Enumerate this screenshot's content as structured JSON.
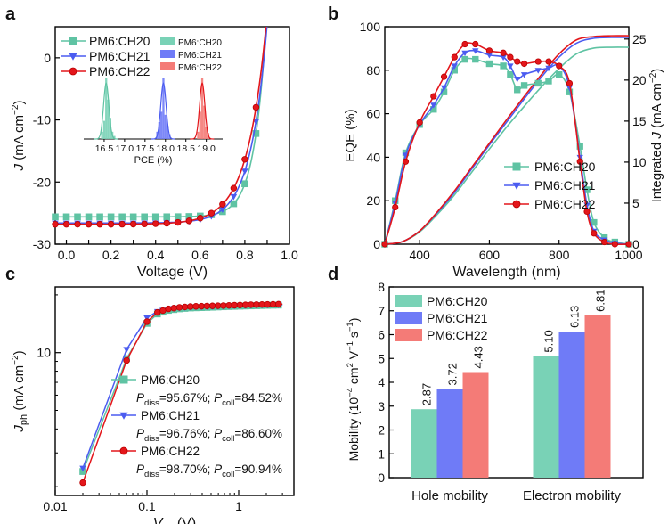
{
  "colors": {
    "ch20": "#5fc3a3",
    "ch21": "#4b5cf0",
    "ch22": "#e3161b",
    "bar20": "#79d2b6",
    "bar21": "#6f7bf7",
    "bar22": "#f47b77"
  },
  "chart_data": [
    {
      "panel": "a",
      "type": "line",
      "xlabel": "Voltage (V)",
      "ylabel_main": "J",
      "ylabel_unit": " (mA cm",
      "ylabel_exp": "−2",
      "ylabel_close": ")",
      "xlim": [
        -0.05,
        1.0
      ],
      "ylim": [
        -30,
        5
      ],
      "xticks": [
        "0.0",
        "0.1",
        "0.2",
        "0.3",
        "0.4",
        "0.5",
        "0.6",
        "0.7",
        "0.8",
        "0.9",
        "1.0"
      ],
      "yticks": [
        "0",
        "-10",
        "-20",
        "-30"
      ],
      "series": [
        {
          "name": "PM6:CH20",
          "jsc": 25.6,
          "voc": 0.885,
          "slope": 3.3
        },
        {
          "name": "PM6:CH21",
          "jsc": 26.6,
          "voc": 0.886,
          "slope": 2.4
        },
        {
          "name": "PM6:CH22",
          "jsc": 26.8,
          "voc": 0.88,
          "slope": 2.1
        }
      ],
      "inset": {
        "xlabel": "PCE (%)",
        "xlim": [
          16.0,
          19.4
        ],
        "xticks": [
          "16.5",
          "17.0",
          "17.5",
          "18.0",
          "18.5",
          "19.0"
        ],
        "legend": [
          "PM6:CH20",
          "PM6:CH21",
          "PM6:CH22"
        ],
        "histograms": [
          {
            "name": "PM6:CH20",
            "x": [
              16.45,
              16.5,
              16.55,
              16.6,
              16.65,
              16.7,
              16.75
            ],
            "count": [
              0.12,
              0.3,
              1.0,
              0.65,
              0.35,
              0.12,
              0.05
            ]
          },
          {
            "name": "PM6:CH21",
            "x": [
              17.8,
              17.85,
              17.9,
              17.95,
              18.0,
              18.05,
              18.1
            ],
            "count": [
              0.12,
              0.28,
              0.45,
              1.0,
              0.4,
              0.22,
              0.08
            ]
          },
          {
            "name": "PM6:CH22",
            "x": [
              18.8,
              18.85,
              18.9,
              18.95,
              19.0,
              19.05
            ],
            "count": [
              0.12,
              0.45,
              1.0,
              0.55,
              0.2,
              0.1
            ]
          }
        ]
      }
    },
    {
      "panel": "b",
      "type": "line",
      "xlabel": "Wavelength (nm)",
      "ylabel_left": "EQE (%)",
      "ylabel_right_pre": "Integrated ",
      "ylabel_right_j": "J",
      "ylabel_right_unit": " (mA cm",
      "ylabel_right_exp": "−2",
      "ylabel_right_close": ")",
      "xlim": [
        300,
        1000
      ],
      "ylim": [
        0,
        100
      ],
      "y2lim": [
        0,
        26.5
      ],
      "xticks": [
        "400",
        "600",
        "800",
        "1000"
      ],
      "yticks": [
        "0",
        "20",
        "40",
        "60",
        "80",
        "100"
      ],
      "y2ticks": [
        "0",
        "5",
        "10",
        "15",
        "20",
        "25"
      ],
      "series": [
        {
          "name": "PM6:CH20",
          "x": [
            300,
            330,
            360,
            400,
            440,
            470,
            500,
            530,
            560,
            600,
            640,
            660,
            680,
            700,
            740,
            770,
            800,
            830,
            860,
            880,
            900,
            930,
            960,
            1000
          ],
          "y": [
            0,
            20,
            42,
            55,
            62,
            70,
            80,
            85,
            85,
            83,
            82,
            78,
            71,
            73,
            74,
            75,
            78,
            70,
            45,
            25,
            10,
            3,
            1,
            0
          ]
        },
        {
          "name": "PM6:CH21",
          "x": [
            300,
            330,
            360,
            400,
            440,
            470,
            500,
            530,
            560,
            600,
            640,
            660,
            680,
            700,
            740,
            770,
            800,
            830,
            860,
            880,
            900,
            930,
            960,
            1000
          ],
          "y": [
            0,
            19,
            41,
            55,
            64,
            72,
            82,
            88,
            89,
            87,
            86,
            82,
            76,
            78,
            80,
            81,
            82,
            72,
            40,
            18,
            6,
            2,
            0.5,
            0
          ]
        },
        {
          "name": "PM6:CH22",
          "x": [
            300,
            330,
            360,
            400,
            440,
            470,
            500,
            530,
            560,
            600,
            640,
            660,
            680,
            700,
            740,
            770,
            800,
            830,
            860,
            880,
            900,
            930,
            960,
            1000
          ],
          "y": [
            0,
            17,
            38,
            56,
            68,
            77,
            86,
            92,
            92,
            89,
            88,
            86,
            84,
            83,
            84,
            84,
            82,
            74,
            38,
            15,
            5,
            1,
            0,
            0
          ]
        }
      ],
      "integrated_series": [
        {
          "name": "PM6:CH20",
          "x": [
            300,
            350,
            400,
            450,
            500,
            550,
            600,
            650,
            700,
            750,
            800,
            850,
            900,
            950,
            1000
          ],
          "y": [
            0,
            0.3,
            1.5,
            3.6,
            6.0,
            8.8,
            11.6,
            14.3,
            16.8,
            19.2,
            21.4,
            23.2,
            23.9,
            24.0,
            24.0
          ]
        },
        {
          "name": "PM6:CH21",
          "x": [
            300,
            350,
            400,
            450,
            500,
            550,
            600,
            650,
            700,
            750,
            800,
            850,
            900,
            950,
            1000
          ],
          "y": [
            0,
            0.3,
            1.6,
            3.8,
            6.3,
            9.2,
            12.1,
            14.9,
            17.7,
            20.4,
            22.8,
            24.5,
            25.1,
            25.2,
            25.2
          ]
        },
        {
          "name": "PM6:CH22",
          "x": [
            300,
            350,
            400,
            450,
            500,
            550,
            600,
            650,
            700,
            750,
            800,
            850,
            900,
            950,
            1000
          ],
          "y": [
            0,
            0.3,
            1.6,
            3.9,
            6.5,
            9.4,
            12.3,
            15.2,
            18.0,
            20.7,
            23.2,
            24.9,
            25.3,
            25.4,
            25.4
          ]
        }
      ]
    },
    {
      "panel": "c",
      "type": "scatter",
      "scale": "log-log",
      "xlabel_main": "V",
      "xlabel_sub": "eff",
      "xlabel_unit": " (V)",
      "ylabel_main": "J",
      "ylabel_sub": "ph",
      "ylabel_unit": " (mA cm",
      "ylabel_exp": "−2",
      "ylabel_close": ")",
      "xlim": [
        0.01,
        4
      ],
      "ylim": [
        1.8,
        22
      ],
      "xticks": [
        "0.01",
        "0.1",
        "1"
      ],
      "yticks": [
        "10"
      ],
      "legend": [
        {
          "name": "PM6:CH20",
          "pdiss_label": "P",
          "pdiss_sub": "diss",
          "pdiss_val": "=95.67%; ",
          "pcoll_label": "P",
          "pcoll_sub": "coll",
          "pcoll_val": "=84.52%"
        },
        {
          "name": "PM6:CH21",
          "pdiss_label": "P",
          "pdiss_sub": "diss",
          "pdiss_val": "=96.76%; ",
          "pcoll_label": "P",
          "pcoll_sub": "coll",
          "pcoll_val": "=86.60%"
        },
        {
          "name": "PM6:CH22",
          "pdiss_label": "P",
          "pdiss_sub": "diss",
          "pdiss_val": "=98.70%; ",
          "pcoll_label": "P",
          "pcoll_sub": "coll",
          "pcoll_val": "=90.94%"
        }
      ],
      "series": [
        {
          "name": "PM6:CH20",
          "x": [
            0.02,
            0.06,
            0.1,
            0.13,
            0.17,
            0.22,
            0.3,
            0.45,
            0.7,
            1.0,
            1.5,
            2.2,
            3.0
          ],
          "y": [
            2.4,
            9.3,
            14.2,
            15.9,
            16.6,
            16.9,
            17.1,
            17.2,
            17.35,
            17.45,
            17.55,
            17.65,
            17.7
          ]
        },
        {
          "name": "PM6:CH21",
          "x": [
            0.02,
            0.06,
            0.1,
            0.13,
            0.17,
            0.22,
            0.3,
            0.45,
            0.7,
            1.0,
            1.5,
            2.2,
            3.0
          ],
          "y": [
            2.5,
            10.4,
            15.2,
            16.4,
            16.9,
            17.1,
            17.3,
            17.4,
            17.5,
            17.6,
            17.7,
            17.75,
            17.8
          ]
        },
        {
          "name": "PM6:CH22",
          "x": [
            0.02,
            0.06,
            0.1,
            0.13,
            0.17,
            0.22,
            0.3,
            0.45,
            0.7,
            1.0,
            1.5,
            2.2,
            3.0
          ],
          "y": [
            2.1,
            9.1,
            14.5,
            16.2,
            16.9,
            17.2,
            17.4,
            17.5,
            17.6,
            17.7,
            17.8,
            17.85,
            17.9
          ]
        }
      ]
    },
    {
      "panel": "d",
      "type": "bar",
      "ylabel_main": "Mobility (10",
      "ylabel_exp1": "−4",
      "ylabel_mid": " cm",
      "ylabel_exp2": "2",
      "ylabel_v": " V",
      "ylabel_exp3": "−1",
      "ylabel_s": " s",
      "ylabel_exp4": "−1",
      "ylabel_close": ")",
      "ylim": [
        0,
        8
      ],
      "yticks": [
        "0",
        "1",
        "2",
        "3",
        "4",
        "5",
        "6",
        "7",
        "8"
      ],
      "categories": [
        "Hole mobility",
        "Electron mobility"
      ],
      "series": [
        {
          "name": "PM6:CH20",
          "values": [
            2.87,
            5.1
          ],
          "labels": [
            "2.87",
            "5.10"
          ]
        },
        {
          "name": "PM6:CH21",
          "values": [
            3.72,
            6.13
          ],
          "labels": [
            "3.72",
            "6.13"
          ]
        },
        {
          "name": "PM6:CH22",
          "values": [
            4.43,
            6.81
          ],
          "labels": [
            "4.43",
            "6.81"
          ]
        }
      ]
    }
  ],
  "panel_labels": [
    "a",
    "b",
    "c",
    "d"
  ]
}
